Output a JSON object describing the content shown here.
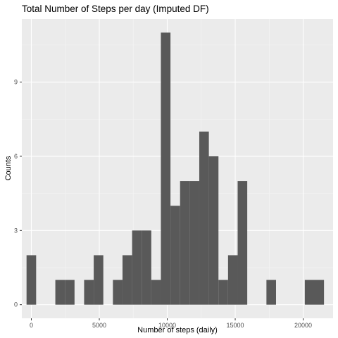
{
  "chart_data": {
    "type": "bar",
    "title": "Total Number of Steps per day (Imputed DF)",
    "xlabel": "Number of steps (daily)",
    "ylabel": "Counts",
    "xlim": [
      -700,
      22200
    ],
    "ylim": [
      -0.55,
      11.55
    ],
    "xticks": [
      0,
      5000,
      10000,
      15000,
      20000
    ],
    "xtick_labels": [
      "0",
      "5000",
      "10000",
      "15000",
      "20000"
    ],
    "yticks": [
      0,
      3,
      6,
      9
    ],
    "ytick_labels": [
      "0",
      "3",
      "6",
      "9"
    ],
    "grid": true,
    "bins": [
      {
        "x0": -353,
        "x1": 353,
        "count": 2
      },
      {
        "x0": 353,
        "x1": 1059,
        "count": 0
      },
      {
        "x0": 1059,
        "x1": 1765,
        "count": 0
      },
      {
        "x0": 1765,
        "x1": 2471,
        "count": 1
      },
      {
        "x0": 2471,
        "x1": 3177,
        "count": 1
      },
      {
        "x0": 3177,
        "x1": 3883,
        "count": 0
      },
      {
        "x0": 3883,
        "x1": 4589,
        "count": 1
      },
      {
        "x0": 4589,
        "x1": 5295,
        "count": 2
      },
      {
        "x0": 5295,
        "x1": 6001,
        "count": 0
      },
      {
        "x0": 6001,
        "x1": 6707,
        "count": 1
      },
      {
        "x0": 6707,
        "x1": 7413,
        "count": 2
      },
      {
        "x0": 7413,
        "x1": 8119,
        "count": 3
      },
      {
        "x0": 8119,
        "x1": 8825,
        "count": 3
      },
      {
        "x0": 8825,
        "x1": 9531,
        "count": 1
      },
      {
        "x0": 9531,
        "x1": 10237,
        "count": 11
      },
      {
        "x0": 10237,
        "x1": 10943,
        "count": 4
      },
      {
        "x0": 10943,
        "x1": 11649,
        "count": 5
      },
      {
        "x0": 11649,
        "x1": 12355,
        "count": 5
      },
      {
        "x0": 12355,
        "x1": 13061,
        "count": 7
      },
      {
        "x0": 13061,
        "x1": 13767,
        "count": 6
      },
      {
        "x0": 13767,
        "x1": 14473,
        "count": 1
      },
      {
        "x0": 14473,
        "x1": 15179,
        "count": 2
      },
      {
        "x0": 15179,
        "x1": 15885,
        "count": 5
      },
      {
        "x0": 15885,
        "x1": 16591,
        "count": 0
      },
      {
        "x0": 16591,
        "x1": 17297,
        "count": 0
      },
      {
        "x0": 17297,
        "x1": 18003,
        "count": 1
      },
      {
        "x0": 18003,
        "x1": 18709,
        "count": 0
      },
      {
        "x0": 18709,
        "x1": 19415,
        "count": 0
      },
      {
        "x0": 19415,
        "x1": 20121,
        "count": 0
      },
      {
        "x0": 20121,
        "x1": 20827,
        "count": 1
      },
      {
        "x0": 20827,
        "x1": 21533,
        "count": 1
      }
    ],
    "colors": {
      "bar": "#595959",
      "panel": "#ebebeb",
      "grid_major": "#ffffff",
      "grid_minor": "#f5f5f5"
    }
  }
}
